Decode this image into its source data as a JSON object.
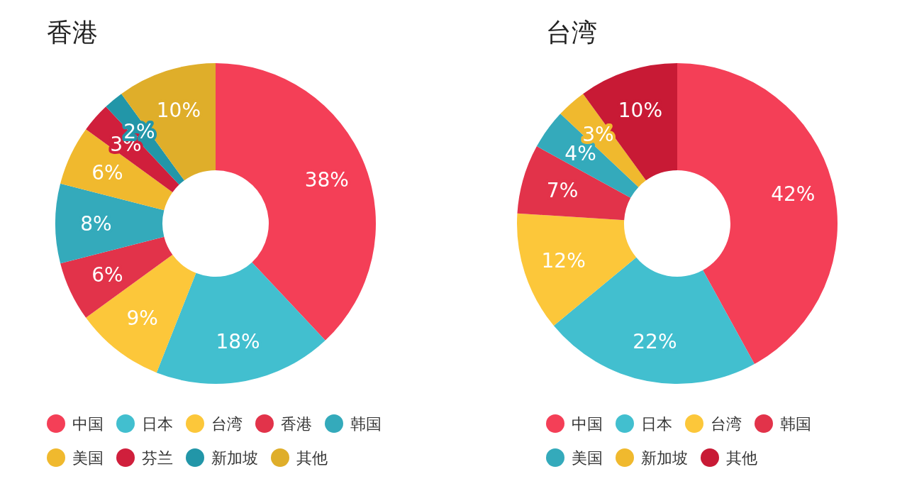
{
  "chart_data": [
    {
      "type": "donut",
      "title": "香港",
      "categories": [
        "中国",
        "日本",
        "台湾",
        "香港",
        "韩国",
        "美国",
        "芬兰",
        "新加坡",
        "其他"
      ],
      "values": [
        38,
        18,
        9,
        6,
        8,
        6,
        3,
        2,
        10
      ],
      "value_labels": [
        "38%",
        "18%",
        "9%",
        "6%",
        "8%",
        "6%",
        "3%",
        "2%",
        "10%"
      ],
      "colors": [
        "#f43f57",
        "#42bfcf",
        "#fcc73a",
        "#e2334a",
        "#34aabb",
        "#f0b92e",
        "#d01f3c",
        "#2296a8",
        "#dfae2a"
      ],
      "legend": "bottom"
    },
    {
      "type": "donut",
      "title": "台湾",
      "categories": [
        "中国",
        "日本",
        "台湾",
        "韩国",
        "美国",
        "新加坡",
        "其他"
      ],
      "values": [
        42,
        22,
        12,
        7,
        4,
        3,
        10
      ],
      "value_labels": [
        "42%",
        "22%",
        "12%",
        "7%",
        "4%",
        "3%",
        "10%"
      ],
      "colors": [
        "#f43f57",
        "#42bfcf",
        "#fcc73a",
        "#e2334a",
        "#34aabb",
        "#f0b92e",
        "#c81a35"
      ],
      "legend": "bottom"
    }
  ]
}
